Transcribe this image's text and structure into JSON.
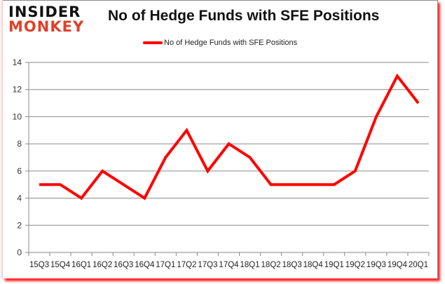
{
  "header": {
    "logo_top": "INSIDER",
    "logo_bottom": "MONKEY",
    "title": "No of Hedge Funds with SFE Positions"
  },
  "legend": {
    "label": "No of Hedge Funds with SFE Positions",
    "color": "#ff0000"
  },
  "colors": {
    "line": "#ff0000",
    "grid": "#8a8a8a",
    "logo_accent": "#e0402a",
    "frame_shadow": "#ff0000"
  },
  "chart_data": {
    "type": "line",
    "title": "No of Hedge Funds with SFE Positions",
    "xlabel": "",
    "ylabel": "",
    "categories": [
      "15Q3",
      "15Q4",
      "16Q1",
      "16Q2",
      "16Q3",
      "16Q4",
      "17Q1",
      "17Q2",
      "17Q3",
      "17Q4",
      "18Q1",
      "18Q2",
      "18Q3",
      "18Q4",
      "19Q1",
      "19Q2",
      "19Q3",
      "19Q4",
      "20Q1"
    ],
    "series": [
      {
        "name": "No of Hedge Funds with SFE Positions",
        "values": [
          5,
          5,
          4,
          6,
          5,
          4,
          7,
          9,
          6,
          8,
          7,
          5,
          5,
          5,
          5,
          6,
          10,
          13,
          11
        ]
      }
    ],
    "ylim": [
      0,
      14
    ],
    "yticks": [
      0,
      2,
      4,
      6,
      8,
      10,
      12,
      14
    ],
    "grid": true,
    "legend_position": "top"
  }
}
